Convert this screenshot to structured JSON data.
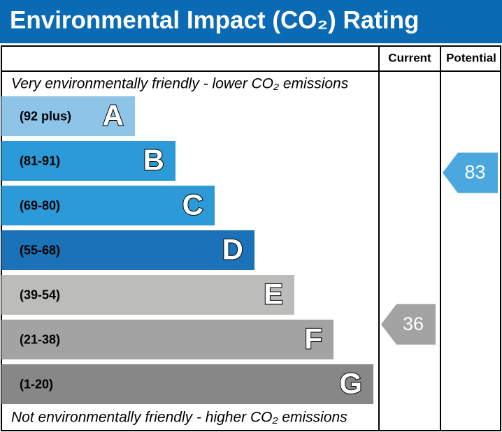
{
  "title": "Environmental Impact (CO₂) Rating",
  "columns": [
    "Current",
    "Potential"
  ],
  "top_note": "Very environmentally friendly - lower CO₂ emissions",
  "bottom_note": "Not environmentally friendly - higher CO₂ emissions",
  "bands": [
    {
      "range": "(92 plus)",
      "letter": "A",
      "color": "#8dc4e8"
    },
    {
      "range": "(81-91)",
      "letter": "B",
      "color": "#2b9ad6"
    },
    {
      "range": "(69-80)",
      "letter": "C",
      "color": "#2b9ad6"
    },
    {
      "range": "(55-68)",
      "letter": "D",
      "color": "#1b72b8"
    },
    {
      "range": "(39-54)",
      "letter": "E",
      "color": "#bcbcbb"
    },
    {
      "range": "(21-38)",
      "letter": "F",
      "color": "#a3a3a3"
    },
    {
      "range": "(1-20)",
      "letter": "G",
      "color": "#878787"
    }
  ],
  "ratings": {
    "current": 36,
    "potential": 83
  }
}
